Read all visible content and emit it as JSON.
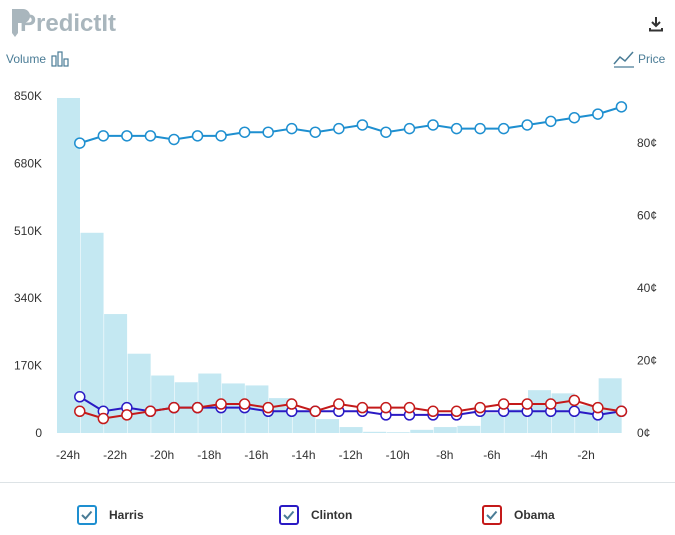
{
  "brand": {
    "logo_text": "PredictIt"
  },
  "toolbar": {
    "volume_label": "Volume",
    "price_label": "Price",
    "download_icon": "download-icon"
  },
  "colors": {
    "volume_bar": "#c4e8f2",
    "harris": "#1e8fd0",
    "clinton": "#2a1ac4",
    "obama": "#c41a1a",
    "logo": "#a9b6bd",
    "accent_text": "#4a7c96"
  },
  "legend": [
    {
      "label": "Harris",
      "checked": true
    },
    {
      "label": "Clinton",
      "checked": true
    },
    {
      "label": "Obama",
      "checked": true
    }
  ],
  "chart_data": {
    "type": "bar+line",
    "x_tick_labels": [
      "-24h",
      "-22h",
      "-20h",
      "-18h",
      "-16h",
      "-14h",
      "-12h",
      "-10h",
      "-8h",
      "-6h",
      "-4h",
      "-2h"
    ],
    "volume": {
      "axis": "left",
      "ylim": [
        0,
        850000
      ],
      "tick_labels": [
        "0",
        "170K",
        "340K",
        "510K",
        "680K",
        "850K"
      ],
      "x": [
        -24,
        -23,
        -22,
        -21,
        -20,
        -19,
        -18,
        -17,
        -16,
        -15,
        -14,
        -13,
        -12,
        -11,
        -10,
        -9,
        -8,
        -7,
        -6,
        -5,
        -4,
        -3,
        -2,
        -1
      ],
      "values": [
        845000,
        505000,
        300000,
        200000,
        145000,
        128000,
        150000,
        125000,
        120000,
        88000,
        55000,
        35000,
        15000,
        3000,
        2000,
        8000,
        15000,
        18000,
        50000,
        60000,
        108000,
        100000,
        70000,
        138000
      ]
    },
    "price": {
      "axis": "right",
      "ylim": [
        0,
        93
      ],
      "tick_labels": [
        "0¢",
        "20¢",
        "40¢",
        "60¢",
        "80¢"
      ],
      "x": [
        -23.5,
        -22.5,
        -21.5,
        -20.5,
        -19.5,
        -18.5,
        -17.5,
        -16.5,
        -15.5,
        -14.5,
        -13.5,
        -12.5,
        -11.5,
        -10.5,
        -9.5,
        -8.5,
        -7.5,
        -6.5,
        -5.5,
        -4.5,
        -3.5,
        -2.5,
        -1.5,
        -0.5
      ],
      "series": [
        {
          "name": "Harris",
          "values": [
            80,
            82,
            82,
            82,
            81,
            82,
            82,
            83,
            83,
            84,
            83,
            84,
            85,
            83,
            84,
            85,
            84,
            84,
            84,
            85,
            86,
            87,
            88,
            90
          ]
        },
        {
          "name": "Clinton",
          "values": [
            10,
            6,
            7,
            6,
            7,
            7,
            7,
            7,
            6,
            6,
            6,
            6,
            6,
            5,
            5,
            5,
            5,
            6,
            6,
            6,
            6,
            6,
            5,
            6
          ]
        },
        {
          "name": "Obama",
          "values": [
            6,
            4,
            5,
            6,
            7,
            7,
            8,
            8,
            7,
            8,
            6,
            8,
            7,
            7,
            7,
            6,
            6,
            7,
            8,
            8,
            8,
            9,
            7,
            6
          ]
        }
      ]
    }
  }
}
